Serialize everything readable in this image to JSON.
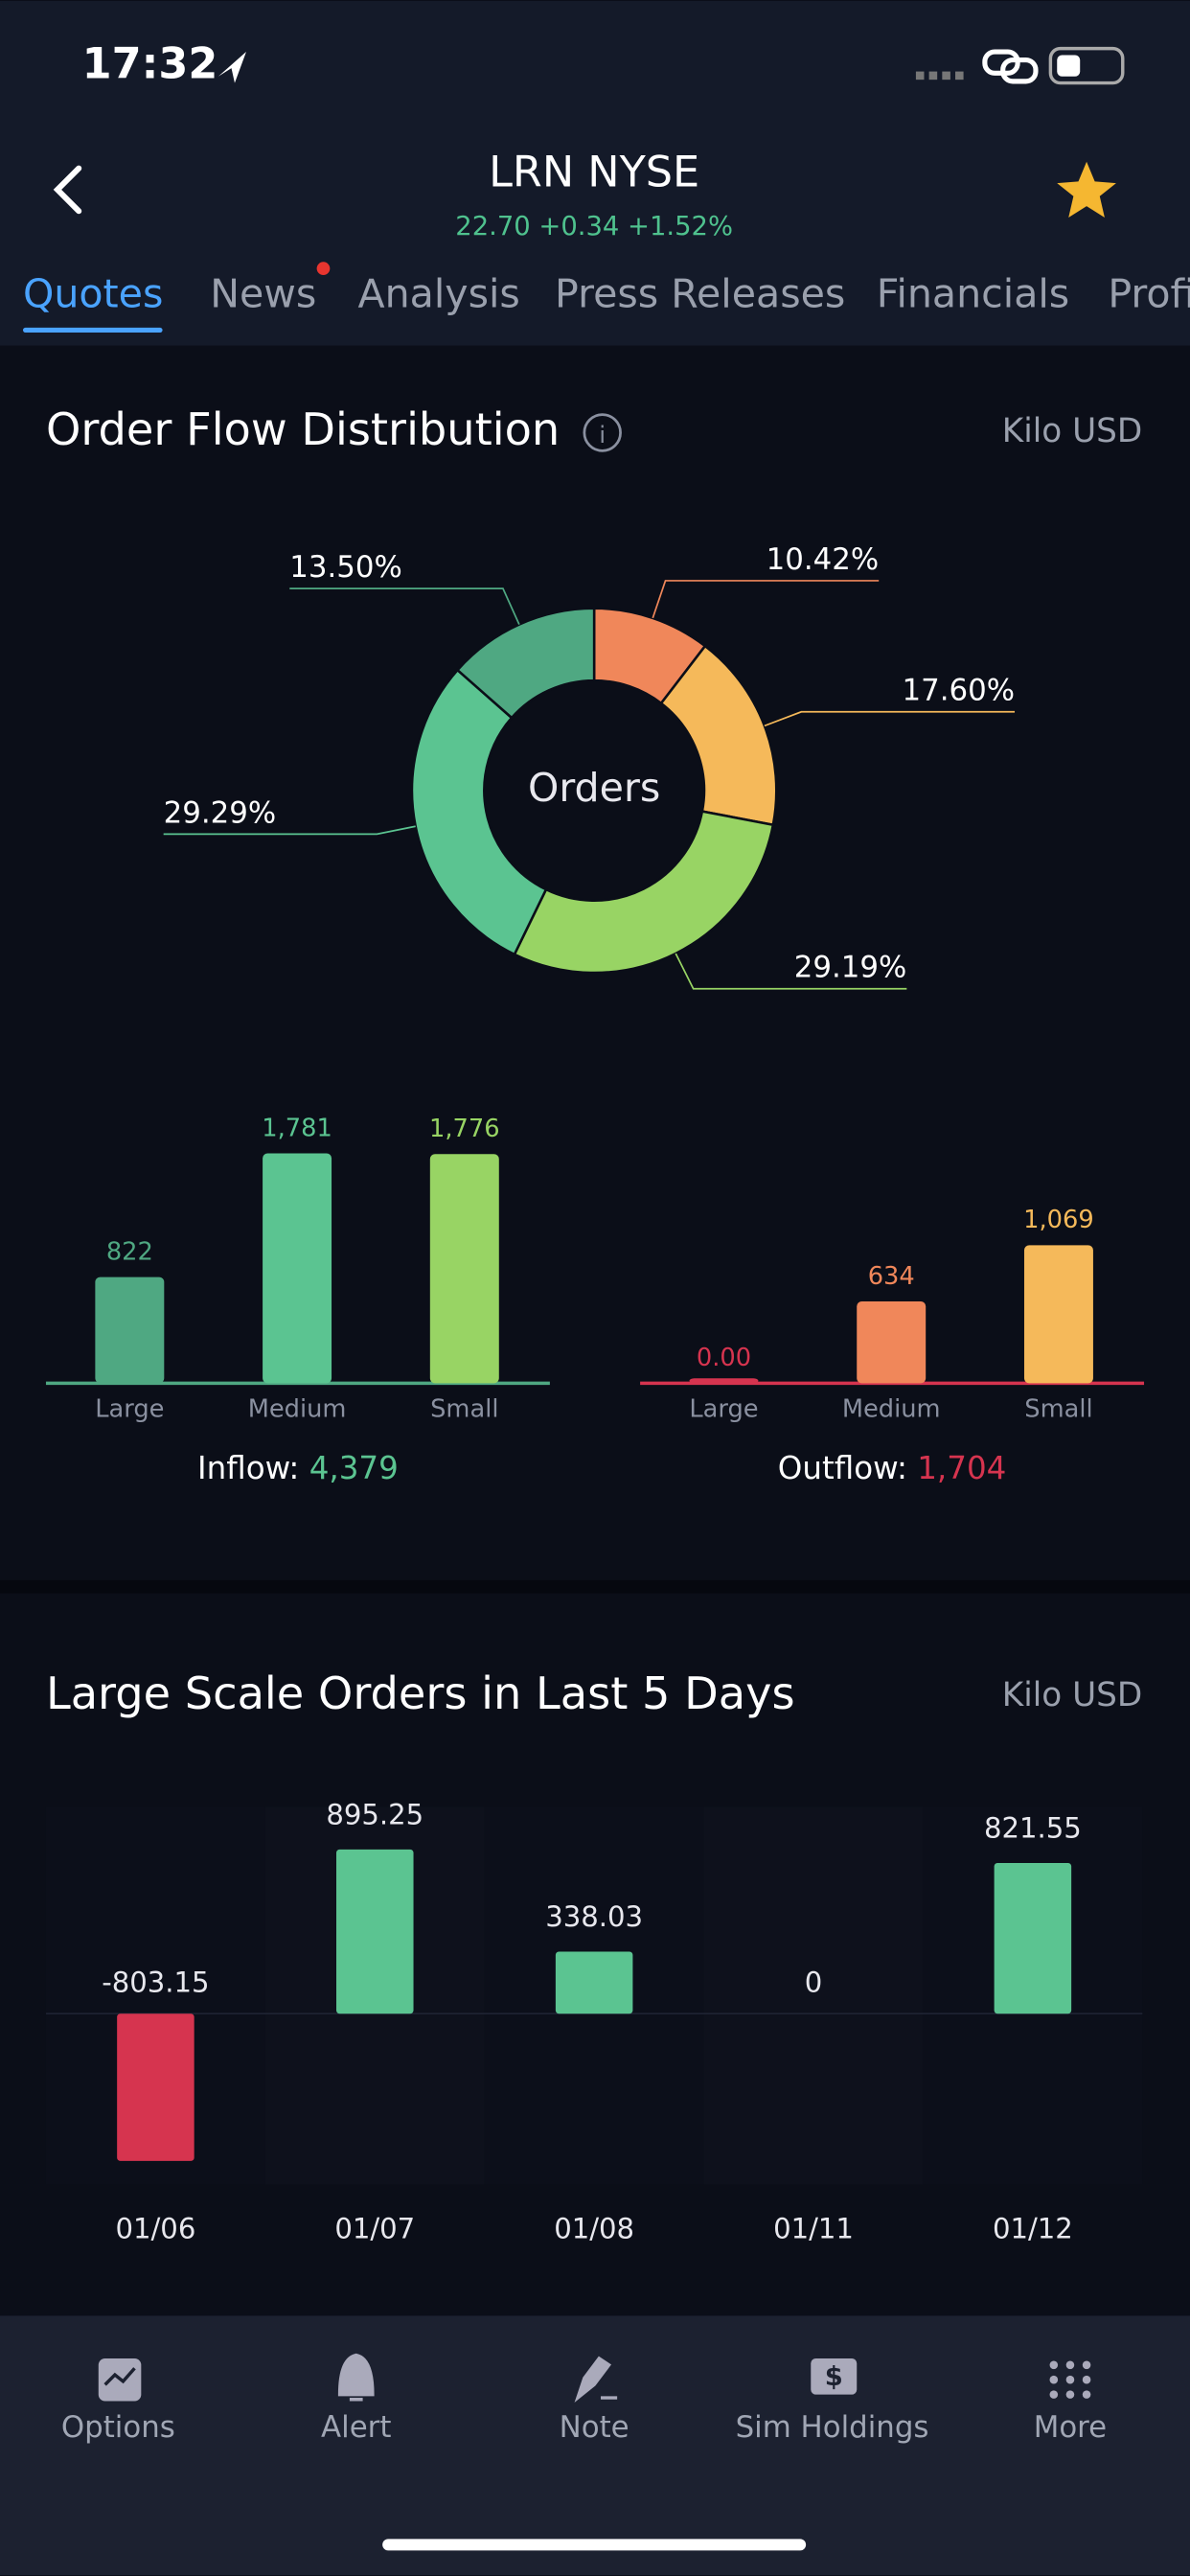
{
  "status_bar": {
    "time": "17:32"
  },
  "header": {
    "title": "LRN NYSE",
    "quote": "22.70 +0.34 +1.52%"
  },
  "tabs": [
    "Quotes",
    "News",
    "Analysis",
    "Press Releases",
    "Financials",
    "Profile"
  ],
  "chart_data": [
    {
      "type": "pie",
      "title": "Order Flow Distribution",
      "unit": "Kilo USD",
      "center_label": "Orders",
      "values": [
        10.42,
        17.6,
        29.19,
        29.29,
        13.5
      ],
      "value_labels": [
        "10.42%",
        "17.60%",
        "29.19%",
        "29.29%",
        "13.50%"
      ],
      "colors": [
        "#f0875a",
        "#f5b95a",
        "#98d464",
        "#5bc491",
        "#4fa882"
      ]
    },
    {
      "type": "bar",
      "title": "Inflow:",
      "categories": [
        "Large",
        "Medium",
        "Small"
      ],
      "values": [
        822,
        1781,
        1776
      ],
      "value_labels": [
        "822",
        "1,781",
        "1,776"
      ],
      "colors": [
        "#4fa882",
        "#5bc491",
        "#98d464"
      ],
      "total": 4379,
      "total_label": "4,379",
      "total_color": "#5bc491"
    },
    {
      "type": "bar",
      "title": "Outflow:",
      "categories": [
        "Large",
        "Medium",
        "Small"
      ],
      "values": [
        0,
        634,
        1069
      ],
      "value_labels": [
        "0.00",
        "634",
        "1,069"
      ],
      "colors": [
        "#d6344f",
        "#f0875a",
        "#f5b95a"
      ],
      "total": 1704,
      "total_label": "1,704",
      "total_color": "#d6344f"
    },
    {
      "type": "bar",
      "title": "Large Scale Orders in Last 5 Days",
      "unit": "Kilo USD",
      "categories": [
        "01/06",
        "01/07",
        "01/08",
        "01/11",
        "01/12"
      ],
      "values": [
        -803.15,
        895.25,
        338.03,
        0,
        821.55
      ],
      "positive_color": "#5bc491",
      "negative_color": "#d6344f"
    }
  ],
  "nav": [
    "Options",
    "Alert",
    "Note",
    "Sim Holdings",
    "More"
  ]
}
